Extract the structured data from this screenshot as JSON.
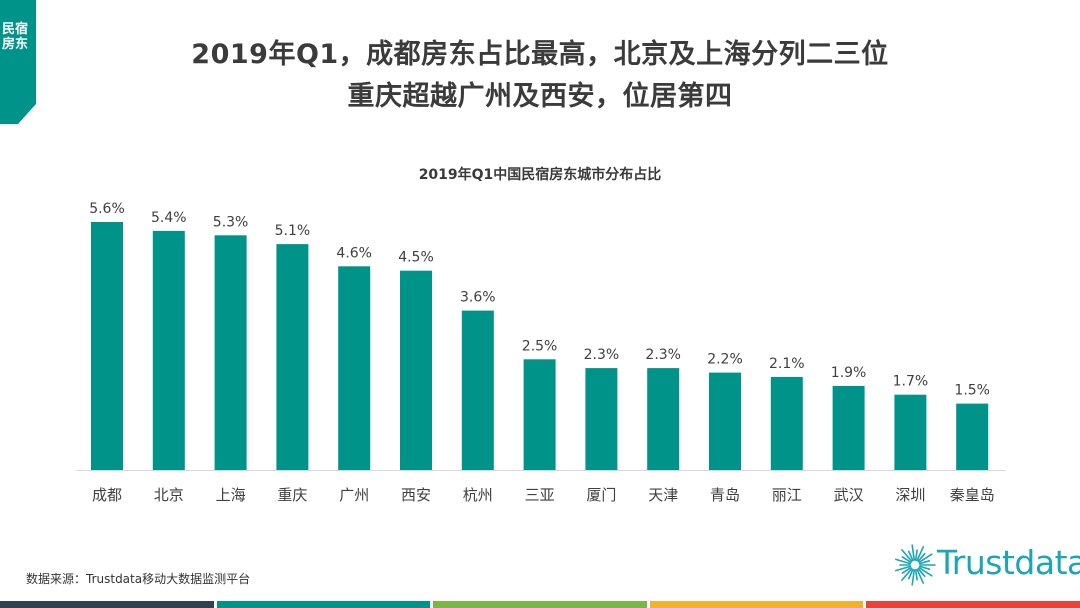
{
  "corner_label": "民宿房东",
  "headline": {
    "line1": "2019年Q1，成都房东占比最高，北京及上海分列二三位",
    "line2": "重庆超越广州及西安，位居第四"
  },
  "chart_data": {
    "type": "bar",
    "title": "2019年Q1中国民宿房东城市分布占比",
    "categories": [
      "成都",
      "北京",
      "上海",
      "重庆",
      "广州",
      "西安",
      "杭州",
      "三亚",
      "厦门",
      "天津",
      "青岛",
      "丽江",
      "武汉",
      "深圳",
      "秦皇岛"
    ],
    "values": [
      5.6,
      5.4,
      5.3,
      5.1,
      4.6,
      4.5,
      3.6,
      2.5,
      2.3,
      2.3,
      2.2,
      2.1,
      1.9,
      1.7,
      1.5
    ],
    "value_labels": [
      "5.6%",
      "5.4%",
      "5.3%",
      "5.1%",
      "4.6%",
      "4.5%",
      "3.6%",
      "2.5%",
      "2.3%",
      "2.3%",
      "2.2%",
      "2.1%",
      "1.9%",
      "1.7%",
      "1.5%"
    ],
    "xlabel": "",
    "ylabel": "",
    "ylim": [
      0,
      5.6
    ],
    "grid": false,
    "legend": "none",
    "bar_color": "#00938a"
  },
  "source": "数据来源：Trustdata移动大数据监测平台",
  "logo": {
    "text": "Trustdata",
    "icon": "starburst-icon",
    "color": "#1aa6b7"
  },
  "colors": {
    "accent": "#00938a",
    "strip": [
      "#2e4350",
      "#00938a",
      "#7ab648",
      "#f4b12e",
      "#e8423b"
    ]
  }
}
